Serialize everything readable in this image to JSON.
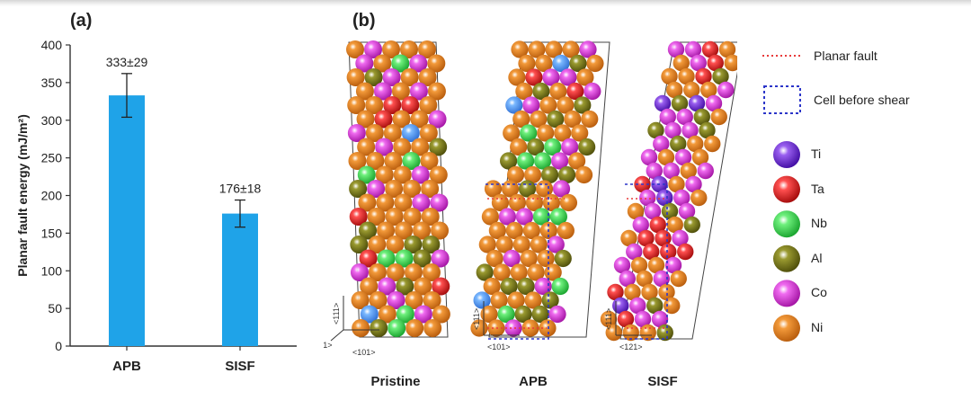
{
  "figure": {
    "panel_a": "(a)",
    "panel_b": "(b)"
  },
  "chart_data": {
    "type": "bar",
    "categories": [
      "APB",
      "SISF"
    ],
    "values": [
      333,
      176
    ],
    "errors": [
      29,
      18
    ],
    "data_labels": [
      "333±29",
      "176±18"
    ],
    "title": "",
    "xlabel": "",
    "ylabel": "Planar fault energy (mJ/m²)",
    "ylim": [
      0,
      400
    ],
    "yticks": [
      0,
      50,
      100,
      150,
      200,
      250,
      300,
      350,
      400
    ],
    "bar_color": "#1fa3e8",
    "grid": false
  },
  "structures": {
    "labels": [
      "Pristine",
      "APB",
      "SISF"
    ],
    "axis_labels": {
      "pristine": [
        "<111>",
        "<121>",
        "<101>"
      ],
      "apb": [
        "<111>",
        "<101>"
      ],
      "sisf": [
        "<111>",
        "<121>"
      ]
    }
  },
  "legend": {
    "lines": [
      {
        "label": "Planar fault",
        "color": "#e83a3a",
        "style": "dotted"
      },
      {
        "label": "Cell before shear",
        "color": "#2b35c9",
        "style": "dotted-box"
      }
    ],
    "atoms": [
      {
        "label": "Ti",
        "color": "#6a1fd8"
      },
      {
        "label": "Ta",
        "color": "#e01414"
      },
      {
        "label": "Nb",
        "color": "#2fd84a"
      },
      {
        "label": "Al",
        "color": "#6e6e14"
      },
      {
        "label": "Co",
        "color": "#e02ae0"
      },
      {
        "label": "Ni",
        "color": "#e8821c"
      }
    ]
  }
}
